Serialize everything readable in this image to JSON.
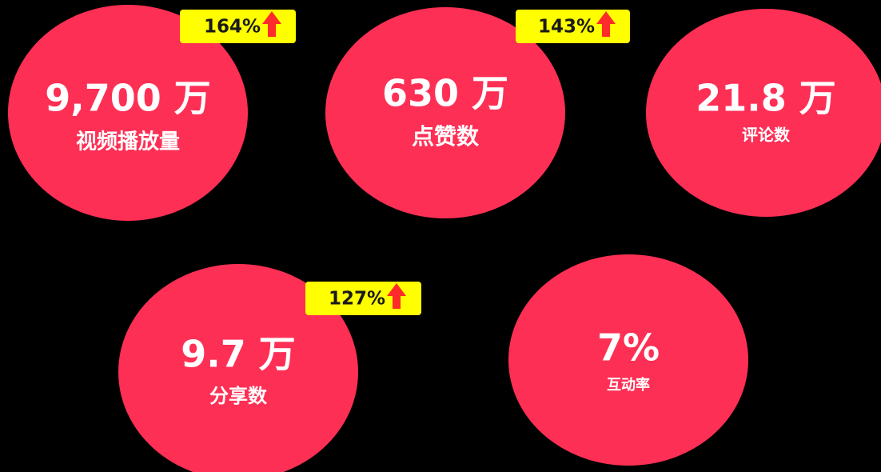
{
  "items": [
    {
      "value": "9,700 万",
      "label": "视频播放量",
      "badge": "164%"
    },
    {
      "value": "630 万",
      "label": "点赞数",
      "badge": "143%"
    },
    {
      "value": "21.8 万",
      "label": "评论数"
    },
    {
      "value": "9.7 万",
      "label": "分享数",
      "badge": "127%"
    },
    {
      "value": "7%",
      "label": "互动率"
    }
  ]
}
